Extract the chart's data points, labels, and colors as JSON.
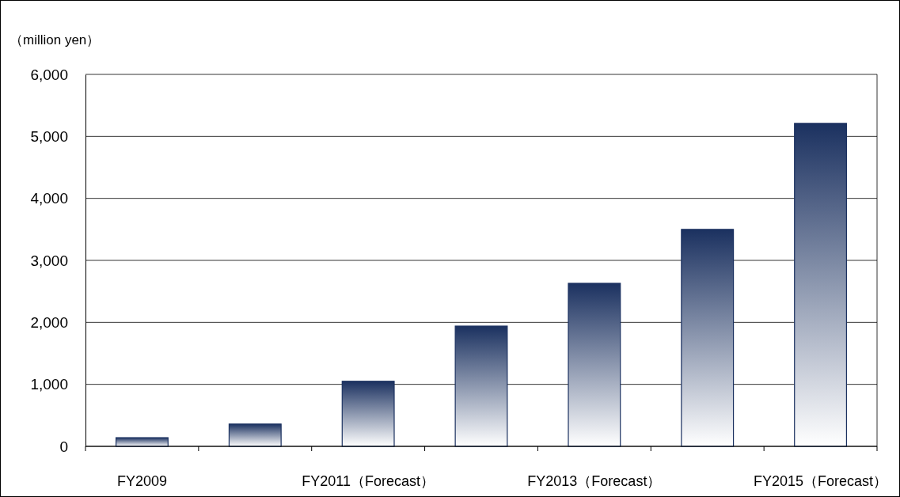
{
  "chart_data": {
    "type": "bar",
    "ylabel": "（million yen）",
    "categories": [
      "FY2009",
      null,
      "FY2011（Forecast）",
      null,
      "FY2013（Forecast）",
      null,
      "FY2015（Forecast）"
    ],
    "values": [
      140,
      360,
      1050,
      1940,
      2630,
      3500,
      5210
    ],
    "color": "#1b3160",
    "ylim": [
      0,
      6000
    ],
    "yticks": [
      {
        "value": 0,
        "label": "0"
      },
      {
        "value": 1000,
        "label": "1,000"
      },
      {
        "value": 2000,
        "label": "2,000"
      },
      {
        "value": 3000,
        "label": "3,000"
      },
      {
        "value": 4000,
        "label": "4,000"
      },
      {
        "value": 5000,
        "label": "5,000"
      },
      {
        "value": 6000,
        "label": "6,000"
      }
    ],
    "grid": "y"
  }
}
